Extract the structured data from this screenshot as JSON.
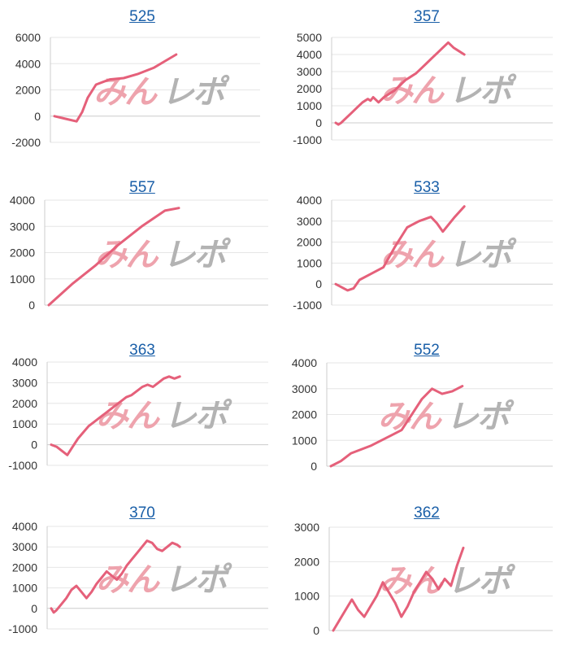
{
  "colors": {
    "line": "#e5607a",
    "grid": "#e6e6e6",
    "axis": "#cccccc",
    "title": "#1a5fa8",
    "tick": "#333333",
    "watermark_left": "#eea3ad",
    "watermark_right": "#b3b3b3"
  },
  "watermark": {
    "left": "みん",
    "right": "レポ"
  },
  "panels": [
    {
      "title": "525"
    },
    {
      "title": "357"
    },
    {
      "title": "557"
    },
    {
      "title": "533"
    },
    {
      "title": "363"
    },
    {
      "title": "552"
    },
    {
      "title": "370"
    },
    {
      "title": "362"
    }
  ],
  "chart_data": [
    {
      "type": "line",
      "title": "525",
      "ylim": [
        -2000,
        6000
      ],
      "yticks": [
        -2000,
        0,
        2000,
        4000,
        6000
      ],
      "x": [
        0,
        8,
        16,
        20,
        24,
        30,
        40,
        50,
        60,
        72,
        80,
        88
      ],
      "y": [
        0,
        -200,
        -400,
        300,
        1400,
        2400,
        2800,
        2900,
        3200,
        3700,
        4200,
        4700
      ]
    },
    {
      "type": "line",
      "title": "357",
      "ylim": [
        -1000,
        5000
      ],
      "yticks": [
        -1000,
        0,
        1000,
        2000,
        3000,
        4000,
        5000
      ],
      "x": [
        0,
        5,
        10,
        20,
        30,
        40,
        50,
        55,
        60,
        65,
        70,
        80,
        90,
        100,
        110,
        120,
        130,
        140,
        150,
        160,
        170,
        180,
        190,
        200,
        210,
        220,
        230,
        240
      ],
      "y": [
        0,
        -100,
        0,
        300,
        600,
        900,
        1200,
        1300,
        1400,
        1300,
        1500,
        1200,
        1500,
        1700,
        1900,
        2200,
        2500,
        2700,
        2900,
        3200,
        3500,
        3800,
        4100,
        4400,
        4700,
        4400,
        4200,
        4000
      ]
    },
    {
      "type": "line",
      "title": "557",
      "ylim": [
        0,
        4000
      ],
      "yticks": [
        0,
        1000,
        2000,
        3000,
        4000
      ],
      "x": [
        0,
        5,
        10,
        15,
        20,
        25,
        28
      ],
      "y": [
        0,
        800,
        1500,
        2300,
        3000,
        3600,
        3700
      ]
    },
    {
      "type": "line",
      "title": "533",
      "ylim": [
        -1000,
        4000
      ],
      "yticks": [
        -1000,
        0,
        1000,
        2000,
        3000,
        4000
      ],
      "x": [
        0,
        10,
        15,
        20,
        30,
        40,
        50,
        60,
        70,
        80,
        85,
        90,
        100,
        108
      ],
      "y": [
        0,
        -300,
        -200,
        200,
        500,
        800,
        1800,
        2700,
        3000,
        3200,
        2900,
        2500,
        3200,
        3700
      ]
    },
    {
      "type": "line",
      "title": "363",
      "ylim": [
        -1000,
        4000
      ],
      "yticks": [
        -1000,
        0,
        1000,
        2000,
        3000,
        4000
      ],
      "x": [
        0,
        10,
        20,
        30,
        40,
        50,
        60,
        70,
        80,
        90,
        100,
        110,
        120,
        130,
        140,
        150,
        160,
        170,
        180,
        190,
        200,
        210,
        220,
        230,
        240
      ],
      "y": [
        0,
        -100,
        -300,
        -500,
        -100,
        300,
        600,
        900,
        1100,
        1300,
        1500,
        1700,
        1900,
        2100,
        2300,
        2400,
        2600,
        2800,
        2900,
        2800,
        3000,
        3200,
        3300,
        3200,
        3300
      ]
    },
    {
      "type": "line",
      "title": "552",
      "ylim": [
        0,
        4000
      ],
      "yticks": [
        0,
        1000,
        2000,
        3000,
        4000
      ],
      "x": [
        0,
        5,
        10,
        20,
        30,
        35,
        40,
        45,
        50,
        55,
        60,
        65
      ],
      "y": [
        0,
        200,
        500,
        800,
        1200,
        1400,
        2000,
        2600,
        3000,
        2800,
        2900,
        3100
      ]
    },
    {
      "type": "line",
      "title": "370",
      "ylim": [
        -1000,
        4000
      ],
      "yticks": [
        -1000,
        0,
        1000,
        2000,
        3000,
        4000
      ],
      "x": [
        0,
        5,
        10,
        20,
        30,
        40,
        50,
        60,
        70,
        80,
        90,
        100,
        110,
        120,
        130,
        140,
        150,
        160,
        170,
        180,
        190,
        200,
        210,
        220,
        230,
        240,
        250,
        255
      ],
      "y": [
        0,
        -200,
        -100,
        200,
        500,
        900,
        1100,
        800,
        500,
        800,
        1200,
        1500,
        1800,
        1600,
        1400,
        1700,
        2100,
        2400,
        2700,
        3000,
        3300,
        3200,
        2900,
        2800,
        3000,
        3200,
        3100,
        3000
      ]
    },
    {
      "type": "line",
      "title": "362",
      "ylim": [
        0,
        3000
      ],
      "yticks": [
        0,
        1000,
        2000,
        3000
      ],
      "x": [
        0,
        10,
        20,
        30,
        40,
        50,
        60,
        70,
        80,
        90,
        100,
        110,
        120,
        130,
        140,
        150,
        160,
        170,
        180,
        190,
        200,
        210
      ],
      "y": [
        0,
        300,
        600,
        900,
        600,
        400,
        700,
        1000,
        1400,
        1100,
        800,
        400,
        700,
        1100,
        1400,
        1700,
        1500,
        1200,
        1500,
        1300,
        1900,
        2400
      ]
    }
  ]
}
